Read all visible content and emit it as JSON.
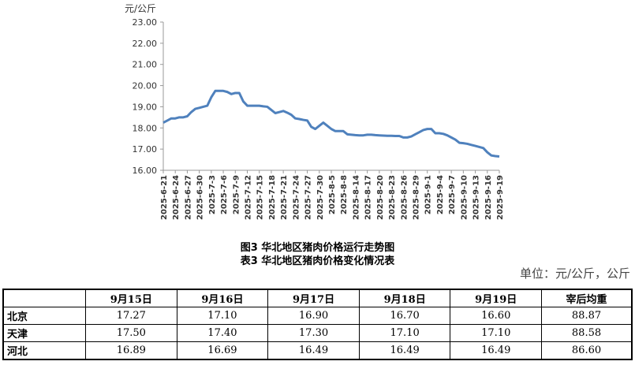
{
  "chart_data": {
    "type": "line",
    "y_label": "元/公斤",
    "color": "#4f81bd",
    "categories": [
      "2025-6-21",
      null,
      null,
      "2025-6-24",
      null,
      null,
      "2025-6-27",
      null,
      null,
      "2025-6-30",
      null,
      null,
      "2025-7-3",
      null,
      null,
      "2025-7-6",
      null,
      null,
      "2025-7-9",
      null,
      null,
      "2025-7-12",
      null,
      null,
      "2025-7-15",
      null,
      null,
      "2025-7-18",
      null,
      null,
      "2025-7-21",
      null,
      null,
      "2025-7-24",
      null,
      null,
      "2025-7-27",
      null,
      null,
      "2025-7-30",
      null,
      null,
      "2025-8-5",
      null,
      null,
      "2025-8-8",
      null,
      null,
      "2025-8-14",
      null,
      null,
      "2025-8-17",
      null,
      null,
      "2025-8-20",
      null,
      null,
      "2025-8-23",
      null,
      null,
      "2025-8-26",
      null,
      null,
      "2025-8-29",
      null,
      null,
      "2025-9-1",
      null,
      null,
      "2025-9-4",
      null,
      null,
      "2025-9-7",
      null,
      null,
      "2025-9-10",
      null,
      null,
      "2025-9-13",
      null,
      null,
      "2025-9-16",
      null,
      null,
      "2025-9-19"
    ],
    "values": [
      18.25,
      18.35,
      18.45,
      18.45,
      18.5,
      18.5,
      18.55,
      18.75,
      18.9,
      18.95,
      19.0,
      19.05,
      19.45,
      19.75,
      19.75,
      19.75,
      19.7,
      19.6,
      19.65,
      19.65,
      19.25,
      19.05,
      19.05,
      19.05,
      19.05,
      19.02,
      19.0,
      18.85,
      18.7,
      18.75,
      18.8,
      18.72,
      18.62,
      18.45,
      18.42,
      18.38,
      18.35,
      18.05,
      17.95,
      18.1,
      18.25,
      18.1,
      17.95,
      17.85,
      17.85,
      17.85,
      17.7,
      17.68,
      17.66,
      17.65,
      17.65,
      17.68,
      17.68,
      17.66,
      17.65,
      17.64,
      17.63,
      17.63,
      17.62,
      17.62,
      17.55,
      17.55,
      17.6,
      17.7,
      17.8,
      17.9,
      17.95,
      17.95,
      17.75,
      17.75,
      17.72,
      17.65,
      17.55,
      17.45,
      17.3,
      17.28,
      17.25,
      17.2,
      17.15,
      17.1,
      17.05,
      16.85,
      16.7,
      16.67,
      16.65
    ],
    "ylim": [
      16,
      23
    ],
    "yticks": [
      {
        "value": 16,
        "label": "16.00"
      },
      {
        "value": 17,
        "label": "17.00"
      },
      {
        "value": 18,
        "label": "18.00"
      },
      {
        "value": 19,
        "label": "19.00"
      },
      {
        "value": 20,
        "label": "20.00"
      },
      {
        "value": 21,
        "label": "21.00"
      },
      {
        "value": 22,
        "label": "22.00"
      },
      {
        "value": 23,
        "label": "23.00"
      }
    ],
    "grid": false
  },
  "captions": [
    "图3 华北地区猪肉价格运行走势图",
    "表3 华北地区猪肉价格变化情况表"
  ],
  "unit": "单位：元/公斤，公斤",
  "table": {
    "header": [
      "",
      "9月15日",
      "9月16日",
      "9月17日",
      "9月18日",
      "9月19日",
      "宰后均重"
    ],
    "rows": [
      [
        "北京",
        "17.27",
        "17.10",
        "16.90",
        "16.70",
        "16.60",
        "88.87"
      ],
      [
        "天津",
        "17.50",
        "17.40",
        "17.30",
        "17.10",
        "17.10",
        "88.58"
      ],
      [
        "河北",
        "16.89",
        "16.69",
        "16.49",
        "16.49",
        "16.49",
        "86.60"
      ]
    ]
  }
}
